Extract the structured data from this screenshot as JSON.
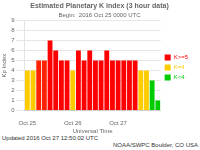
{
  "chart_data": {
    "type": "bar",
    "title": "Estimated Planetary K index (3 hour data)",
    "subtitle": "Begin:  2016 Oct 25 0000 UTC",
    "xlabel": "Universal Time",
    "ylabel": "Kp Index",
    "categories": [
      "Oct 25",
      null,
      null,
      null,
      null,
      null,
      null,
      null,
      "Oct 26",
      null,
      null,
      null,
      null,
      null,
      null,
      null,
      "Oct 27",
      null,
      null,
      null,
      null,
      null,
      null,
      null
    ],
    "values": [
      4,
      4,
      5,
      5,
      7,
      6,
      5,
      5,
      4,
      6,
      5,
      6,
      5,
      5,
      6,
      5,
      5,
      5,
      5,
      5,
      4,
      4,
      3,
      1
    ],
    "colors": [
      "#ffcc00",
      "#ffcc00",
      "#ff2200",
      "#ff2200",
      "#ff0000",
      "#ff0000",
      "#ff0000",
      "#ff0000",
      "#ffcc00",
      "#ff0000",
      "#ff0000",
      "#ff0000",
      "#ff0000",
      "#ff0000",
      "#ff0000",
      "#ff0000",
      "#ff0000",
      "#ff0000",
      "#ff0000",
      "#ff0000",
      "#ffcc00",
      "#ffcc00",
      "#00cc00",
      "#00cc00"
    ],
    "ylim": [
      0,
      9
    ],
    "yticks": [
      0,
      1,
      2,
      3,
      4,
      5,
      6,
      7,
      8,
      9
    ],
    "grid": true,
    "legend": "right",
    "annotations": [
      {
        "text": "Updated 2016 Oct 27 12:50:02 UTC"
      },
      {
        "text": "NOAA/SWPC Boulder, CO USA"
      },
      {
        "text": "K>=5",
        "color": "#ff0000"
      },
      {
        "text": "K=4",
        "color": "#ffcc00"
      },
      {
        "text": "K<4",
        "color": "#00cc00"
      }
    ]
  }
}
